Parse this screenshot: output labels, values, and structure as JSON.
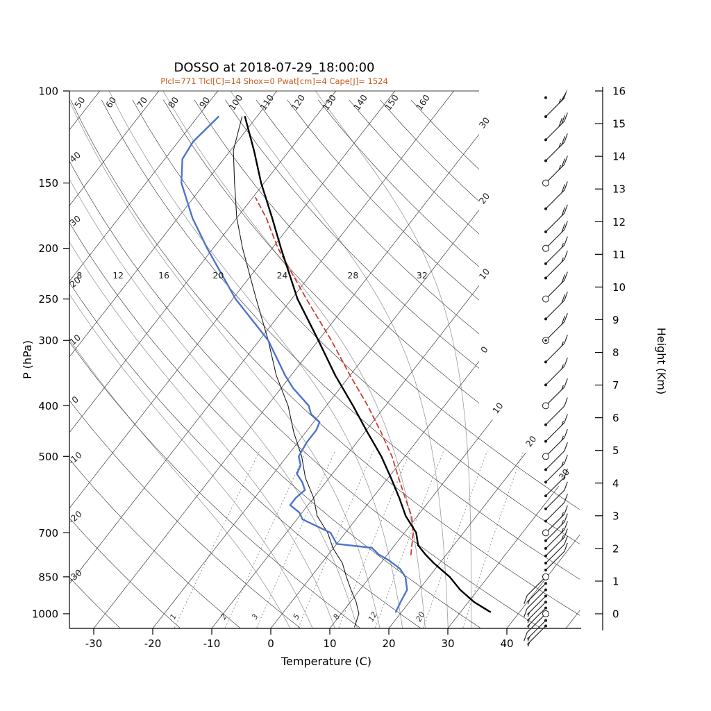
{
  "header": {
    "title": "DOSSO at 2018-07-29_18:00:00",
    "subtitle": "Plcl=771 Tlcl[C]=14 Shox=0 Pwat[cm]=4 Cape[J]= 1524"
  },
  "axes": {
    "pressure": {
      "label": "P (hPa)",
      "ticks": [
        100,
        150,
        200,
        250,
        300,
        400,
        500,
        700,
        850,
        1000
      ]
    },
    "temperature": {
      "label": "Temperature (C)",
      "ticks": [
        -30,
        -20,
        -10,
        0,
        10,
        20,
        30,
        40
      ]
    },
    "height": {
      "label": "Height (Km)",
      "ticks": [
        0,
        1,
        2,
        3,
        4,
        5,
        6,
        7,
        8,
        9,
        10,
        11,
        12,
        13,
        14,
        15,
        16
      ]
    }
  },
  "chart_data": {
    "type": "skewt-logp",
    "title": "DOSSO at 2018-07-29_18:00:00",
    "station": "DOSSO",
    "datetime": "2018-07-29_18:00:00",
    "indices": {
      "Plcl": 771,
      "Tlcl_C": 14,
      "Shox": 0,
      "Pwat_cm": 4,
      "Cape_J": 1524
    },
    "pressure_range_hPa": [
      100,
      1050
    ],
    "temperature_axis_C": [
      -30,
      40
    ],
    "height_axis_km": [
      0,
      16
    ],
    "grid": {
      "isotherms_C": {
        "min": -110,
        "max": 50,
        "step": 10
      },
      "isotherm_edge_labels": [
        {
          "t": -30,
          "text": "30"
        },
        {
          "t": -20,
          "text": "20"
        },
        {
          "t": -10,
          "text": "10"
        },
        {
          "t": 0,
          "text": "0"
        },
        {
          "t": 10,
          "text": "10"
        },
        {
          "t": 20,
          "text": "20"
        },
        {
          "t": 30,
          "text": "30"
        }
      ],
      "dry_adiabats_C": {
        "min": -30,
        "max": 160,
        "step": 10
      },
      "dry_adiabat_top_labels": [
        50,
        60,
        70,
        80,
        90,
        100,
        110,
        120,
        130,
        140,
        150,
        160
      ],
      "dry_adiabat_left_labels": [
        40,
        30,
        20,
        10,
        0,
        -10,
        -20,
        -30
      ],
      "moist_adiabats_C": [
        0,
        4,
        8,
        12,
        16,
        20,
        24,
        28,
        32
      ],
      "moist_adiabat_labels": [
        8,
        12,
        16,
        20,
        24,
        28,
        32
      ],
      "mixing_ratio_g_kg": [
        1,
        2,
        3,
        5,
        8,
        12,
        20,
        30
      ],
      "mixing_ratio_labels": [
        "1",
        "2",
        "3",
        "5",
        "8",
        "12",
        "20"
      ]
    },
    "series": {
      "temperature": {
        "name": "Temperature",
        "color": "#000000",
        "width": 2.4,
        "points": [
          [
            992,
            35
          ],
          [
            950,
            31
          ],
          [
            900,
            27
          ],
          [
            850,
            23.5
          ],
          [
            800,
            19
          ],
          [
            771,
            16.5
          ],
          [
            740,
            14
          ],
          [
            700,
            12
          ],
          [
            650,
            8
          ],
          [
            600,
            4.5
          ],
          [
            550,
            0.5
          ],
          [
            500,
            -4
          ],
          [
            450,
            -9.5
          ],
          [
            400,
            -15.5
          ],
          [
            350,
            -22.5
          ],
          [
            300,
            -30
          ],
          [
            250,
            -39
          ],
          [
            200,
            -48.5
          ],
          [
            175,
            -54
          ],
          [
            150,
            -60.5
          ],
          [
            130,
            -66
          ],
          [
            112,
            -72
          ]
        ]
      },
      "dewpoint": {
        "name": "Dewpoint",
        "color": "#4d74c9",
        "width": 2.4,
        "points": [
          [
            992,
            19
          ],
          [
            950,
            18.5
          ],
          [
            900,
            18
          ],
          [
            850,
            16
          ],
          [
            820,
            14
          ],
          [
            790,
            11
          ],
          [
            770,
            8.5
          ],
          [
            748,
            6.5
          ],
          [
            735,
            0
          ],
          [
            700,
            -2.5
          ],
          [
            660,
            -9
          ],
          [
            640,
            -10.5
          ],
          [
            620,
            -13
          ],
          [
            600,
            -13
          ],
          [
            580,
            -12.5
          ],
          [
            560,
            -14
          ],
          [
            540,
            -16
          ],
          [
            520,
            -16.5
          ],
          [
            500,
            -18
          ],
          [
            470,
            -18.5
          ],
          [
            445,
            -18.5
          ],
          [
            430,
            -19
          ],
          [
            415,
            -21.5
          ],
          [
            400,
            -23
          ],
          [
            370,
            -28
          ],
          [
            350,
            -31
          ],
          [
            300,
            -38.5
          ],
          [
            250,
            -49.5
          ],
          [
            200,
            -61
          ],
          [
            175,
            -67.5
          ],
          [
            150,
            -74
          ],
          [
            135,
            -77
          ],
          [
            125,
            -77.5
          ],
          [
            112,
            -76.5
          ]
        ]
      },
      "parcel": {
        "name": "Parcel ascent",
        "color": "#cf3b2a",
        "width": 1.8,
        "dash": "7 5",
        "points": [
          [
            771,
            14
          ],
          [
            700,
            11.5
          ],
          [
            650,
            9
          ],
          [
            600,
            5.5
          ],
          [
            550,
            1.8
          ],
          [
            500,
            -2.2
          ],
          [
            450,
            -7.2
          ],
          [
            400,
            -13
          ],
          [
            350,
            -20
          ],
          [
            300,
            -27.8
          ],
          [
            250,
            -37.5
          ],
          [
            200,
            -49
          ],
          [
            175,
            -55
          ],
          [
            160,
            -59.5
          ]
        ]
      },
      "secondary": {
        "name": "Auxiliary profile",
        "color": "#1a1a1a",
        "width": 1.1,
        "points": [
          [
            1060,
            14
          ],
          [
            1000,
            13
          ],
          [
            950,
            11
          ],
          [
            900,
            8.5
          ],
          [
            850,
            6
          ],
          [
            800,
            3.5
          ],
          [
            750,
            0
          ],
          [
            700,
            -3
          ],
          [
            650,
            -7
          ],
          [
            600,
            -10
          ],
          [
            550,
            -14
          ],
          [
            500,
            -17.5
          ],
          [
            450,
            -22
          ],
          [
            400,
            -26.5
          ],
          [
            350,
            -32.5
          ],
          [
            300,
            -38.5
          ],
          [
            250,
            -46
          ],
          [
            200,
            -55
          ],
          [
            175,
            -60
          ],
          [
            150,
            -65
          ],
          [
            130,
            -69.5
          ],
          [
            112,
            -72.5
          ]
        ]
      }
    },
    "wind_barbs": {
      "color": "#1a1a1a",
      "levels": [
        {
          "p": 1055,
          "sym": "dot",
          "kt": 5,
          "dir": 225
        },
        {
          "p": 1030,
          "sym": "dot",
          "kt": 5,
          "dir": 225
        },
        {
          "p": 1000,
          "sym": "circle",
          "kt": 10,
          "dir": 225
        },
        {
          "p": 975,
          "sym": "dot",
          "kt": 5,
          "dir": 225
        },
        {
          "p": 950,
          "sym": "dot",
          "kt": 5,
          "dir": 225
        },
        {
          "p": 925,
          "sym": "dot",
          "kt": 5,
          "dir": 225
        },
        {
          "p": 900,
          "sym": "dot",
          "kt": 10,
          "dir": 225
        },
        {
          "p": 875,
          "sym": "dot",
          "kt": 5,
          "dir": 225
        },
        {
          "p": 850,
          "sym": "circle",
          "kt": 10,
          "dir": 225
        },
        {
          "p": 825,
          "sym": "dot",
          "kt": 10,
          "dir": 45
        },
        {
          "p": 800,
          "sym": "dot",
          "kt": 10,
          "dir": 45
        },
        {
          "p": 775,
          "sym": "dot",
          "kt": 15,
          "dir": 45
        },
        {
          "p": 750,
          "sym": "dot",
          "kt": 15,
          "dir": 45
        },
        {
          "p": 725,
          "sym": "dot",
          "kt": 15,
          "dir": 45
        },
        {
          "p": 700,
          "sym": "circle",
          "kt": 15,
          "dir": 45
        },
        {
          "p": 665,
          "sym": "dot",
          "kt": 10,
          "dir": 45
        },
        {
          "p": 630,
          "sym": "dot",
          "kt": 10,
          "dir": 45
        },
        {
          "p": 595,
          "sym": "dot",
          "kt": 10,
          "dir": 45
        },
        {
          "p": 560,
          "sym": "dot",
          "kt": 15,
          "dir": 45
        },
        {
          "p": 530,
          "sym": "dot",
          "kt": 10,
          "dir": 45
        },
        {
          "p": 500,
          "sym": "circle",
          "kt": 15,
          "dir": 45
        },
        {
          "p": 468,
          "sym": "dot",
          "kt": 15,
          "dir": 45
        },
        {
          "p": 435,
          "sym": "dot",
          "kt": 10,
          "dir": 45
        },
        {
          "p": 400,
          "sym": "circle",
          "kt": 15,
          "dir": 45
        },
        {
          "p": 365,
          "sym": "dot",
          "kt": 15,
          "dir": 45
        },
        {
          "p": 330,
          "sym": "dot",
          "kt": 15,
          "dir": 45
        },
        {
          "p": 300,
          "sym": "circle-dot",
          "kt": 20,
          "dir": 45
        },
        {
          "p": 273,
          "sym": "dot",
          "kt": 20,
          "dir": 45
        },
        {
          "p": 250,
          "sym": "circle",
          "kt": 20,
          "dir": 45
        },
        {
          "p": 228,
          "sym": "dot",
          "kt": 15,
          "dir": 45
        },
        {
          "p": 214,
          "sym": "dot",
          "kt": 15,
          "dir": 45
        },
        {
          "p": 200,
          "sym": "circle",
          "kt": 20,
          "dir": 45
        },
        {
          "p": 186,
          "sym": "dot",
          "kt": 20,
          "dir": 45
        },
        {
          "p": 168,
          "sym": "dot",
          "kt": 20,
          "dir": 45
        },
        {
          "p": 150,
          "sym": "circle",
          "kt": 25,
          "dir": 45
        },
        {
          "p": 136,
          "sym": "dot",
          "kt": 25,
          "dir": 45
        },
        {
          "p": 124,
          "sym": "dot",
          "kt": 30,
          "dir": 45
        },
        {
          "p": 112,
          "sym": "dot",
          "kt": 55,
          "dir": 45
        },
        {
          "p": 103,
          "sym": "dot",
          "kt": 0,
          "dir": 45
        }
      ]
    }
  },
  "colors": {
    "background": "#ffffff",
    "subtitle": "#c75b1d",
    "grid": "#3c3c3c",
    "moist_adiabat": "#9a9a9a",
    "mixing_ratio": "#8a8a8a",
    "temperature": "#000000",
    "dewpoint": "#4d74c9",
    "parcel": "#cf3b2a"
  }
}
